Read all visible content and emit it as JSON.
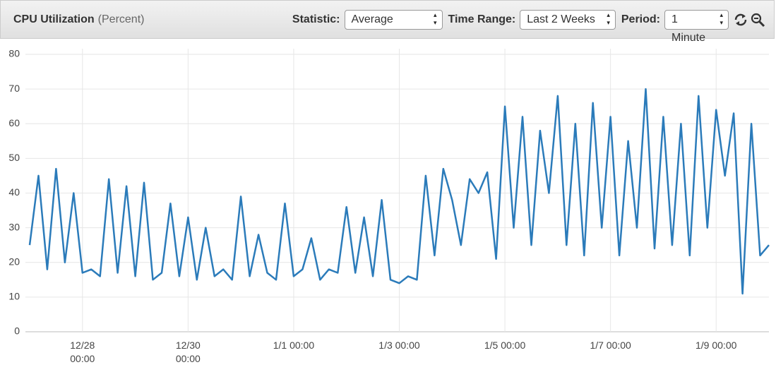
{
  "header": {
    "title": "CPU Utilization",
    "unit": "(Percent)",
    "controls": [
      {
        "label": "Statistic:",
        "value": "Average"
      },
      {
        "label": "Time Range:",
        "value": "Last 2 Weeks"
      },
      {
        "label": "Period:",
        "value": "1 Minute"
      }
    ]
  },
  "chart_data": {
    "type": "line",
    "color": "#2b7bba",
    "grid": true,
    "x": [
      "12/27 00:00",
      "12/27 04:00",
      "12/27 08:00",
      "12/27 12:00",
      "12/27 16:00",
      "12/27 20:00",
      "12/28 00:00",
      "12/28 04:00",
      "12/28 08:00",
      "12/28 12:00",
      "12/28 16:00",
      "12/28 20:00",
      "12/29 00:00",
      "12/29 04:00",
      "12/29 08:00",
      "12/29 12:00",
      "12/29 16:00",
      "12/29 20:00",
      "12/30 00:00",
      "12/30 04:00",
      "12/30 08:00",
      "12/30 12:00",
      "12/30 16:00",
      "12/30 20:00",
      "12/31 00:00",
      "12/31 04:00",
      "12/31 08:00",
      "12/31 12:00",
      "12/31 16:00",
      "12/31 20:00",
      "1/1 00:00",
      "1/1 04:00",
      "1/1 08:00",
      "1/1 12:00",
      "1/1 16:00",
      "1/1 20:00",
      "1/2 00:00",
      "1/2 04:00",
      "1/2 08:00",
      "1/2 12:00",
      "1/2 16:00",
      "1/2 20:00",
      "1/3 00:00",
      "1/3 04:00",
      "1/3 08:00",
      "1/3 12:00",
      "1/3 16:00",
      "1/3 20:00",
      "1/4 00:00",
      "1/4 04:00",
      "1/4 08:00",
      "1/4 12:00",
      "1/4 16:00",
      "1/4 20:00",
      "1/5 00:00",
      "1/5 04:00",
      "1/5 08:00",
      "1/5 12:00",
      "1/5 16:00",
      "1/5 20:00",
      "1/6 00:00",
      "1/6 04:00",
      "1/6 08:00",
      "1/6 12:00",
      "1/6 16:00",
      "1/6 20:00",
      "1/7 00:00",
      "1/7 04:00",
      "1/7 08:00",
      "1/7 12:00",
      "1/7 16:00",
      "1/7 20:00",
      "1/8 00:00",
      "1/8 04:00",
      "1/8 08:00",
      "1/8 12:00",
      "1/8 16:00",
      "1/8 20:00",
      "1/9 00:00",
      "1/9 04:00",
      "1/9 08:00",
      "1/9 12:00",
      "1/9 16:00",
      "1/9 20:00",
      "1/10 00:00"
    ],
    "values": [
      25,
      45,
      18,
      47,
      20,
      40,
      17,
      18,
      16,
      44,
      17,
      42,
      16,
      43,
      15,
      17,
      37,
      16,
      33,
      15,
      30,
      16,
      18,
      15,
      39,
      16,
      28,
      17,
      15,
      37,
      16,
      18,
      27,
      15,
      18,
      17,
      36,
      17,
      33,
      16,
      38,
      15,
      14,
      16,
      15,
      45,
      22,
      47,
      38,
      25,
      44,
      40,
      46,
      21,
      65,
      30,
      62,
      25,
      58,
      40,
      68,
      25,
      60,
      22,
      66,
      30,
      62,
      22,
      55,
      30,
      70,
      24,
      62,
      25,
      60,
      22,
      68,
      30,
      64,
      45,
      63,
      11,
      60,
      22,
      25
    ],
    "ylim": [
      0,
      80
    ],
    "yticks": [
      0,
      10,
      20,
      30,
      40,
      50,
      60,
      70,
      80
    ],
    "xticks": [
      "12/28 00:00",
      "12/30 00:00",
      "1/1 00:00",
      "1/3 00:00",
      "1/5 00:00",
      "1/7 00:00",
      "1/9 00:00"
    ]
  }
}
